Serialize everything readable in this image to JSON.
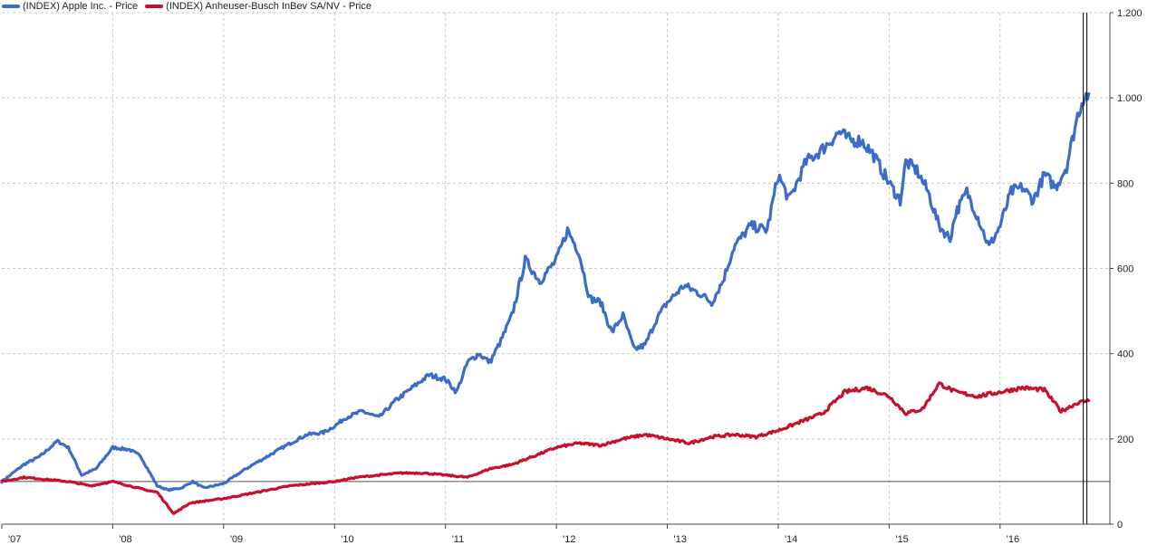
{
  "chart_data": {
    "type": "line",
    "title": "",
    "xlabel": "",
    "ylabel": "",
    "ylim": [
      0,
      1200
    ],
    "yticks": [
      0,
      200,
      400,
      600,
      800,
      1000,
      1200
    ],
    "ytick_labels": [
      "0",
      "200",
      "400",
      "600",
      "800",
      "1.000",
      "1.200"
    ],
    "xlim": [
      2007.0,
      2016.99
    ],
    "xticks": [
      2007,
      2008,
      2009,
      2010,
      2011,
      2012,
      2013,
      2014,
      2015,
      2016
    ],
    "xtick_labels": [
      "'07",
      "'08",
      "'09",
      "'10",
      "'11",
      "'12",
      "'13",
      "'14",
      "'15",
      "'16"
    ],
    "reference_line": 100,
    "cursor_x": 2016.75,
    "grid": true,
    "legend_position": "top-left",
    "series": [
      {
        "name": "(INDEX) Apple Inc. - Price",
        "color": "#3a6cc8",
        "x": [
          2007.0,
          2007.2,
          2007.35,
          2007.5,
          2007.6,
          2007.72,
          2007.85,
          2008.0,
          2008.15,
          2008.25,
          2008.4,
          2008.5,
          2008.62,
          2008.72,
          2008.82,
          2009.0,
          2009.2,
          2009.4,
          2009.6,
          2009.75,
          2009.9,
          2010.0,
          2010.1,
          2010.25,
          2010.4,
          2010.55,
          2010.7,
          2010.85,
          2011.0,
          2011.1,
          2011.2,
          2011.3,
          2011.4,
          2011.5,
          2011.6,
          2011.72,
          2011.85,
          2012.0,
          2012.1,
          2012.2,
          2012.3,
          2012.4,
          2012.5,
          2012.6,
          2012.7,
          2012.8,
          2012.9,
          2013.0,
          2013.15,
          2013.3,
          2013.4,
          2013.5,
          2013.6,
          2013.75,
          2013.9,
          2014.0,
          2014.1,
          2014.25,
          2014.4,
          2014.55,
          2014.65,
          2014.75,
          2014.85,
          2015.0,
          2015.1,
          2015.15,
          2015.25,
          2015.35,
          2015.45,
          2015.55,
          2015.6,
          2015.7,
          2015.8,
          2015.9,
          2016.0,
          2016.1,
          2016.2,
          2016.3,
          2016.4,
          2016.5,
          2016.6,
          2016.7,
          2016.75,
          2016.8
        ],
        "values": [
          100,
          140,
          160,
          195,
          180,
          115,
          130,
          180,
          175,
          160,
          90,
          80,
          85,
          100,
          85,
          95,
          130,
          160,
          190,
          210,
          215,
          230,
          250,
          265,
          250,
          290,
          320,
          350,
          340,
          310,
          380,
          400,
          380,
          430,
          490,
          620,
          570,
          620,
          690,
          640,
          530,
          520,
          450,
          490,
          410,
          420,
          480,
          520,
          560,
          540,
          520,
          570,
          650,
          700,
          690,
          820,
          760,
          850,
          880,
          920,
          900,
          900,
          870,
          800,
          760,
          850,
          830,
          780,
          700,
          670,
          730,
          780,
          720,
          650,
          700,
          780,
          790,
          760,
          820,
          790,
          840,
          960,
          1000,
          1010
        ]
      },
      {
        "name": "(INDEX) Anheuser-Busch InBev SA/NV - Price",
        "color": "#c8102e",
        "x": [
          2007.0,
          2007.2,
          2007.4,
          2007.6,
          2007.8,
          2008.0,
          2008.15,
          2008.3,
          2008.4,
          2008.55,
          2008.7,
          2008.85,
          2009.0,
          2009.2,
          2009.4,
          2009.6,
          2009.8,
          2010.0,
          2010.2,
          2010.4,
          2010.6,
          2010.8,
          2011.0,
          2011.2,
          2011.4,
          2011.6,
          2011.8,
          2012.0,
          2012.2,
          2012.4,
          2012.6,
          2012.8,
          2013.0,
          2013.2,
          2013.4,
          2013.6,
          2013.8,
          2014.0,
          2014.2,
          2014.4,
          2014.6,
          2014.8,
          2015.0,
          2015.15,
          2015.3,
          2015.45,
          2015.6,
          2015.8,
          2016.0,
          2016.2,
          2016.4,
          2016.55,
          2016.7,
          2016.8
        ],
        "values": [
          100,
          110,
          105,
          100,
          90,
          100,
          90,
          80,
          75,
          25,
          50,
          55,
          60,
          70,
          80,
          90,
          95,
          100,
          110,
          115,
          120,
          120,
          115,
          110,
          130,
          140,
          160,
          180,
          190,
          185,
          200,
          210,
          200,
          190,
          205,
          210,
          205,
          220,
          240,
          260,
          310,
          320,
          300,
          260,
          270,
          330,
          310,
          300,
          310,
          320,
          315,
          265,
          285,
          290
        ]
      }
    ]
  }
}
